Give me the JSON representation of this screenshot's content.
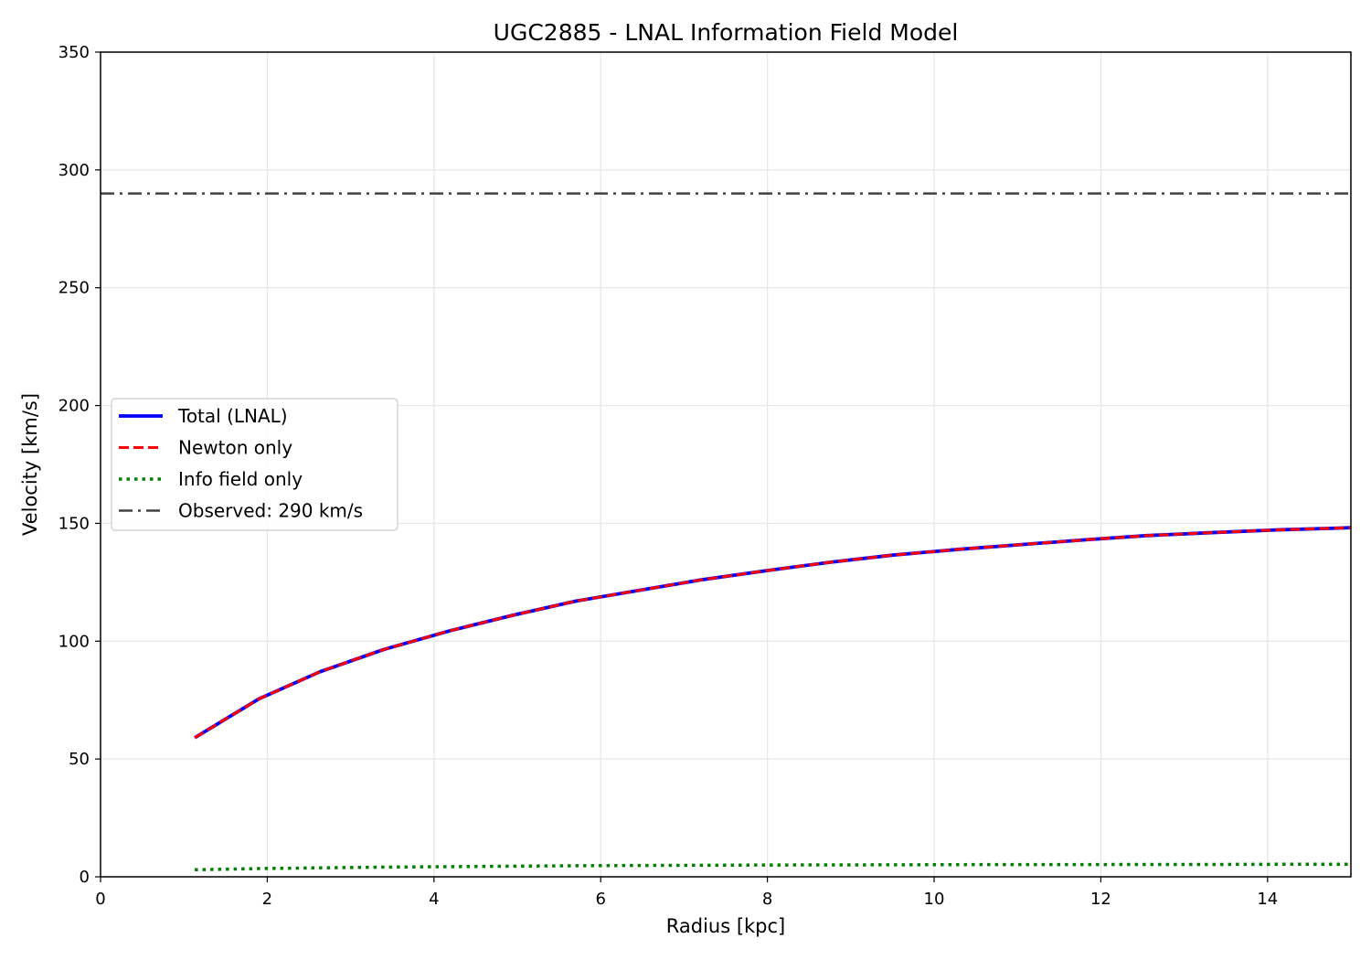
{
  "chart_data": {
    "type": "line",
    "title": "UGC2885 - LNAL Information Field Model",
    "xlabel": "Radius [kpc]",
    "ylabel": "Velocity [km/s]",
    "xlim": [
      0,
      15
    ],
    "ylim": [
      0,
      350
    ],
    "xticks": [
      0,
      2,
      4,
      6,
      8,
      10,
      12,
      14
    ],
    "yticks": [
      0,
      50,
      100,
      150,
      200,
      250,
      300,
      350
    ],
    "grid": true,
    "legend_position": "center-left",
    "x": [
      1.13,
      1.9,
      2.63,
      3.4,
      4.2,
      4.95,
      5.7,
      6.45,
      7.2,
      8.0,
      8.75,
      9.5,
      10.3,
      11.05,
      11.8,
      12.55,
      13.3,
      14.1,
      14.85,
      15.0
    ],
    "series": [
      {
        "name": "Total (LNAL)",
        "color": "#0000ff",
        "style": "solid",
        "values": [
          59,
          75.5,
          87,
          96.5,
          104.5,
          111,
          117,
          121.5,
          126,
          130,
          133.5,
          136.5,
          139,
          141,
          143,
          144.8,
          146,
          147.2,
          148,
          148.2
        ]
      },
      {
        "name": "Newton only",
        "color": "#ff0000",
        "style": "dashed",
        "values": [
          59,
          75.5,
          87,
          96.5,
          104.5,
          111,
          117,
          121.5,
          126,
          130,
          133.5,
          136.5,
          139,
          141,
          143,
          144.8,
          146,
          147.2,
          148,
          148.2
        ]
      },
      {
        "name": "Info field only",
        "color": "#008000",
        "style": "dotted",
        "values": [
          3,
          3.5,
          3.8,
          4.1,
          4.3,
          4.5,
          4.7,
          4.8,
          4.9,
          5.0,
          5.05,
          5.1,
          5.15,
          5.2,
          5.2,
          5.25,
          5.25,
          5.3,
          5.3,
          5.3
        ]
      }
    ],
    "reference_lines": [
      {
        "name": "Observed: 290 km/s",
        "y": 290,
        "color": "#404040",
        "style": "dashdot"
      }
    ]
  }
}
